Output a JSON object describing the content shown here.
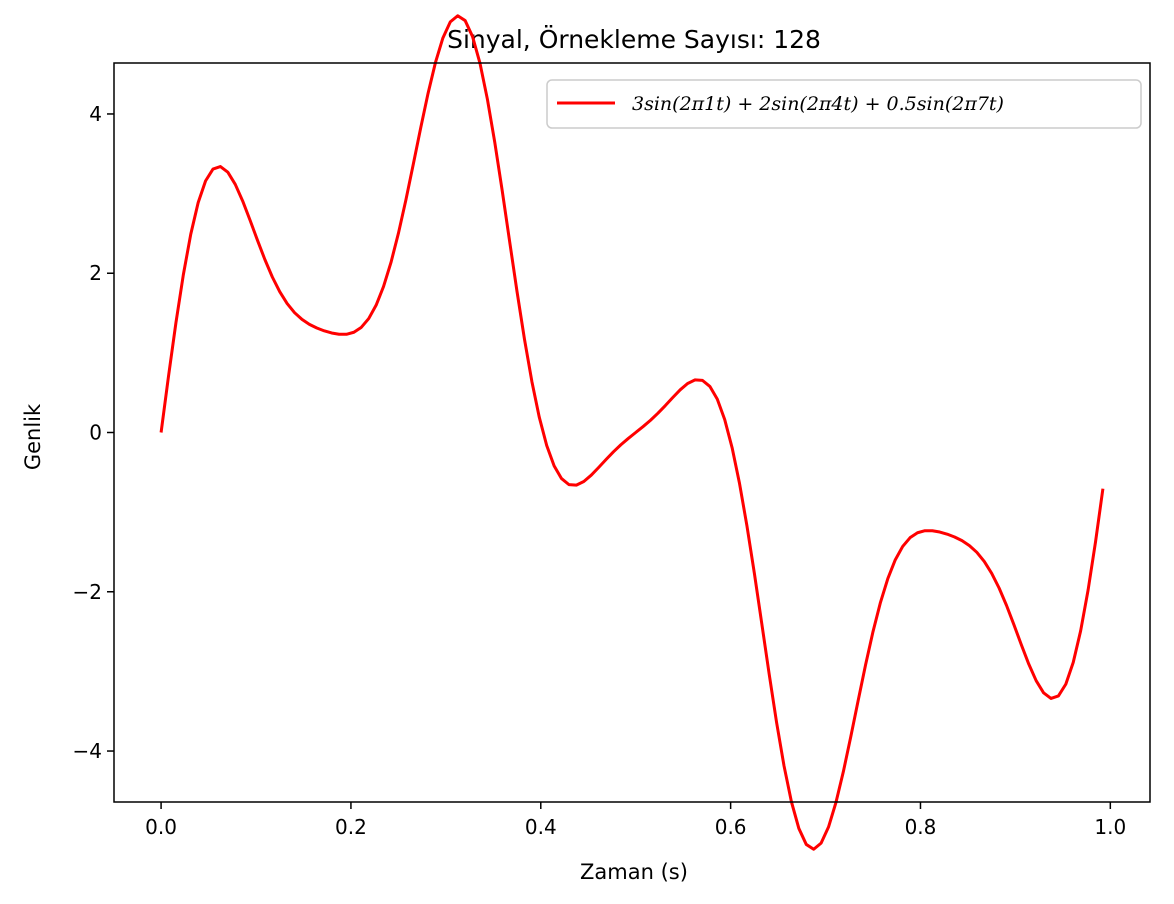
{
  "chart_data": {
    "type": "line",
    "title": "Sinyal, Örnekleme Sayısı: 128",
    "xlabel": "Zaman (s)",
    "ylabel": "Genlik",
    "xlim": [
      -0.0496,
      1.0418
    ],
    "ylim": [
      -4.64,
      4.64
    ],
    "xticks": [
      0.0,
      0.2,
      0.4,
      0.6,
      0.8,
      1.0
    ],
    "xtick_labels": [
      "0.0",
      "0.2",
      "0.4",
      "0.6",
      "0.8",
      "1.0"
    ],
    "yticks": [
      -4,
      -2,
      0,
      2,
      4
    ],
    "ytick_labels": [
      "−4",
      "−2",
      "0",
      "2",
      "4"
    ],
    "grid": false,
    "legend_position": "top-right",
    "sample_count": 128,
    "series": [
      {
        "name": "3sin(2π1t) + 2sin(2π4t) + 0.5sin(2π7t)",
        "color": "#ff0000",
        "formula": {
          "terms": [
            {
              "amplitude": 3,
              "frequency": 1
            },
            {
              "amplitude": 2,
              "frequency": 4
            },
            {
              "amplitude": 0.5,
              "frequency": 7
            }
          ]
        }
      }
    ]
  }
}
